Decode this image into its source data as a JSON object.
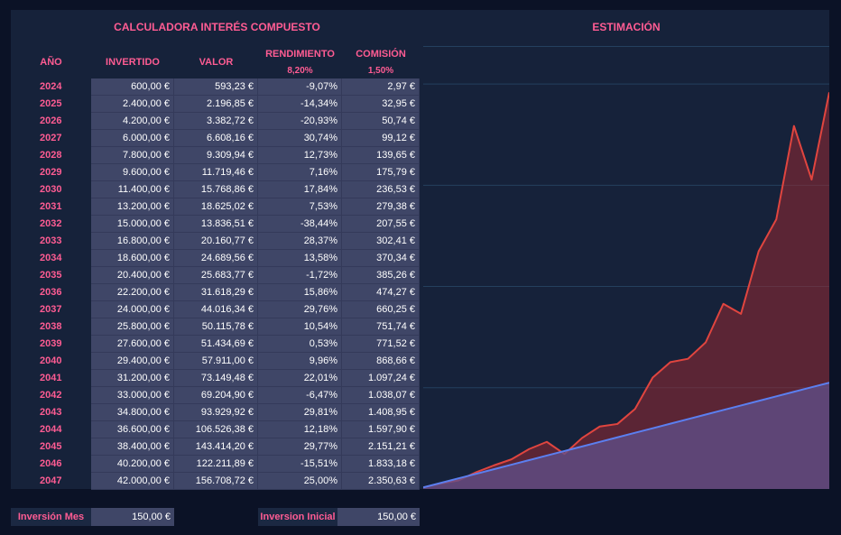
{
  "table": {
    "title": "CALCULADORA INTERÉS COMPUESTO",
    "headers": {
      "year": "AÑO",
      "invested": "INVERTIDO",
      "value": "VALOR",
      "yield": "RENDIMIENTO",
      "yield_rate": "8,20%",
      "commission": "COMISIÓN",
      "commission_rate": "1,50%"
    },
    "rows": [
      {
        "year": "2024",
        "invested": "600,00 €",
        "value": "593,23 €",
        "yield": "-9,07%",
        "commission": "2,97 €"
      },
      {
        "year": "2025",
        "invested": "2.400,00 €",
        "value": "2.196,85 €",
        "yield": "-14,34%",
        "commission": "32,95 €"
      },
      {
        "year": "2026",
        "invested": "4.200,00 €",
        "value": "3.382,72 €",
        "yield": "-20,93%",
        "commission": "50,74 €"
      },
      {
        "year": "2027",
        "invested": "6.000,00 €",
        "value": "6.608,16 €",
        "yield": "30,74%",
        "commission": "99,12 €"
      },
      {
        "year": "2028",
        "invested": "7.800,00 €",
        "value": "9.309,94 €",
        "yield": "12,73%",
        "commission": "139,65 €"
      },
      {
        "year": "2029",
        "invested": "9.600,00 €",
        "value": "11.719,46 €",
        "yield": "7,16%",
        "commission": "175,79 €"
      },
      {
        "year": "2030",
        "invested": "11.400,00 €",
        "value": "15.768,86 €",
        "yield": "17,84%",
        "commission": "236,53 €"
      },
      {
        "year": "2031",
        "invested": "13.200,00 €",
        "value": "18.625,02 €",
        "yield": "7,53%",
        "commission": "279,38 €"
      },
      {
        "year": "2032",
        "invested": "15.000,00 €",
        "value": "13.836,51 €",
        "yield": "-38,44%",
        "commission": "207,55 €"
      },
      {
        "year": "2033",
        "invested": "16.800,00 €",
        "value": "20.160,77 €",
        "yield": "28,37%",
        "commission": "302,41 €"
      },
      {
        "year": "2034",
        "invested": "18.600,00 €",
        "value": "24.689,56 €",
        "yield": "13,58%",
        "commission": "370,34 €"
      },
      {
        "year": "2035",
        "invested": "20.400,00 €",
        "value": "25.683,77 €",
        "yield": "-1,72%",
        "commission": "385,26 €"
      },
      {
        "year": "2036",
        "invested": "22.200,00 €",
        "value": "31.618,29 €",
        "yield": "15,86%",
        "commission": "474,27 €"
      },
      {
        "year": "2037",
        "invested": "24.000,00 €",
        "value": "44.016,34 €",
        "yield": "29,76%",
        "commission": "660,25 €"
      },
      {
        "year": "2038",
        "invested": "25.800,00 €",
        "value": "50.115,78 €",
        "yield": "10,54%",
        "commission": "751,74 €"
      },
      {
        "year": "2039",
        "invested": "27.600,00 €",
        "value": "51.434,69 €",
        "yield": "0,53%",
        "commission": "771,52 €"
      },
      {
        "year": "2040",
        "invested": "29.400,00 €",
        "value": "57.911,00 €",
        "yield": "9,96%",
        "commission": "868,66 €"
      },
      {
        "year": "2041",
        "invested": "31.200,00 €",
        "value": "73.149,48 €",
        "yield": "22,01%",
        "commission": "1.097,24 €"
      },
      {
        "year": "2042",
        "invested": "33.000,00 €",
        "value": "69.204,90 €",
        "yield": "-6,47%",
        "commission": "1.038,07 €"
      },
      {
        "year": "2043",
        "invested": "34.800,00 €",
        "value": "93.929,92 €",
        "yield": "29,81%",
        "commission": "1.408,95 €"
      },
      {
        "year": "2044",
        "invested": "36.600,00 €",
        "value": "106.526,38 €",
        "yield": "12,18%",
        "commission": "1.597,90 €"
      },
      {
        "year": "2045",
        "invested": "38.400,00 €",
        "value": "143.414,20 €",
        "yield": "29,77%",
        "commission": "2.151,21 €"
      },
      {
        "year": "2046",
        "invested": "40.200,00 €",
        "value": "122.211,89 €",
        "yield": "-15,51%",
        "commission": "1.833,18 €"
      },
      {
        "year": "2047",
        "invested": "42.000,00 €",
        "value": "156.708,72 €",
        "yield": "25,00%",
        "commission": "2.350,63 €"
      }
    ]
  },
  "inputs": {
    "monthly_label": "Inversión Mes",
    "monthly_value": "150,00 €",
    "initial_label": "Inversion Inicial",
    "initial_value": "150,00 €"
  },
  "chart_title": "ESTIMACIÓN",
  "colors": {
    "accent": "#ff5c93",
    "value_line": "#e0453f",
    "invested_line": "#5b7ff0",
    "background": "#0b1226",
    "panel": "#16223a",
    "cell": "#3f4667"
  },
  "chart_data": {
    "type": "area",
    "title": "ESTIMACIÓN",
    "x": [
      0,
      1,
      2,
      3,
      4,
      5,
      6,
      7,
      8,
      9,
      10,
      11,
      12,
      13,
      14,
      15,
      16,
      17,
      18,
      19,
      20,
      21,
      22,
      23
    ],
    "series": [
      {
        "values": [
          593.23,
          2196.85,
          3382.72,
          6608.16,
          9309.94,
          11719.46,
          15768.86,
          18625.02,
          13836.51,
          20160.77,
          24689.56,
          25683.77,
          31618.29,
          44016.34,
          50115.78,
          51434.69,
          57911.0,
          73149.48,
          69204.9,
          93929.92,
          106526.38,
          143414.2,
          122211.89,
          156708.72
        ]
      },
      {
        "values": [
          600,
          2400,
          4200,
          6000,
          7800,
          9600,
          11400,
          13200,
          15000,
          16800,
          18600,
          20400,
          22200,
          24000,
          25800,
          27600,
          29400,
          31200,
          33000,
          34800,
          36600,
          38400,
          40200,
          42000
        ]
      }
    ],
    "ylim": [
      0,
      175000
    ],
    "grid": true,
    "legend": "none"
  }
}
